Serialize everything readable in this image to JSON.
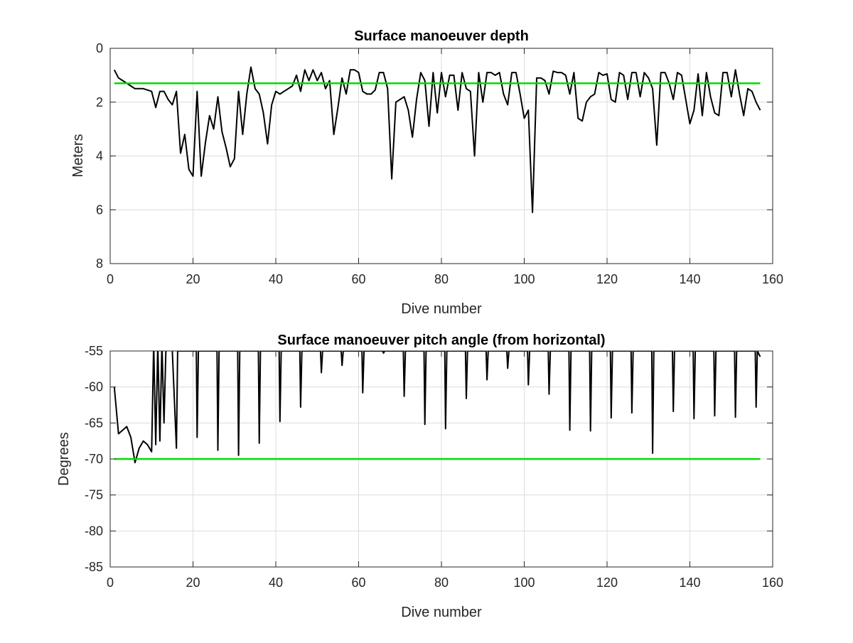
{
  "chart_data": [
    {
      "type": "line",
      "title": "Surface manoeuver depth",
      "xlabel": "Dive number",
      "ylabel": "Meters",
      "xlim": [
        0,
        160
      ],
      "ylim": [
        0,
        8
      ],
      "y_reversed": true,
      "grid": true,
      "xticks": [
        "0",
        "20",
        "40",
        "60",
        "80",
        "100",
        "120",
        "140",
        "160"
      ],
      "yticks": [
        "0",
        "2",
        "4",
        "6",
        "8"
      ],
      "reference_line": {
        "y": 1.3,
        "x_range": [
          1,
          157
        ],
        "color": "#00dd00"
      },
      "series": [
        {
          "color": "#000000",
          "points": [
            [
              1,
              0.8
            ],
            [
              2,
              1.1
            ],
            [
              3,
              1.2
            ],
            [
              4,
              1.3
            ],
            [
              5,
              1.4
            ],
            [
              6,
              1.5
            ],
            [
              7,
              1.5
            ],
            [
              8,
              1.5
            ],
            [
              9,
              1.55
            ],
            [
              10,
              1.6
            ],
            [
              11,
              2.2
            ],
            [
              12,
              1.6
            ],
            [
              13,
              1.6
            ],
            [
              14,
              1.9
            ],
            [
              15,
              2.1
            ],
            [
              16,
              1.6
            ],
            [
              17,
              3.9
            ],
            [
              18,
              3.2
            ],
            [
              19,
              4.5
            ],
            [
              20,
              4.75
            ],
            [
              21,
              1.6
            ],
            [
              22,
              4.75
            ],
            [
              23,
              3.5
            ],
            [
              24,
              2.5
            ],
            [
              25,
              3.0
            ],
            [
              26,
              1.8
            ],
            [
              27,
              3.1
            ],
            [
              28,
              3.7
            ],
            [
              29,
              4.4
            ],
            [
              30,
              4.1
            ],
            [
              31,
              1.6
            ],
            [
              32,
              3.2
            ],
            [
              33,
              1.7
            ],
            [
              34,
              0.7
            ],
            [
              35,
              1.5
            ],
            [
              36,
              1.7
            ],
            [
              37,
              2.4
            ],
            [
              38,
              3.55
            ],
            [
              39,
              2.1
            ],
            [
              40,
              1.6
            ],
            [
              41,
              1.7
            ],
            [
              42,
              1.6
            ],
            [
              43,
              1.5
            ],
            [
              44,
              1.4
            ],
            [
              45,
              1.0
            ],
            [
              46,
              1.6
            ],
            [
              47,
              0.8
            ],
            [
              48,
              1.2
            ],
            [
              49,
              0.8
            ],
            [
              50,
              1.2
            ],
            [
              51,
              0.9
            ],
            [
              52,
              1.5
            ],
            [
              53,
              1.2
            ],
            [
              54,
              3.2
            ],
            [
              55,
              2.2
            ],
            [
              56,
              1.1
            ],
            [
              57,
              1.7
            ],
            [
              58,
              0.8
            ],
            [
              59,
              0.8
            ],
            [
              60,
              0.9
            ],
            [
              61,
              1.6
            ],
            [
              62,
              1.7
            ],
            [
              63,
              1.7
            ],
            [
              64,
              1.55
            ],
            [
              65,
              0.9
            ],
            [
              66,
              0.9
            ],
            [
              67,
              1.5
            ],
            [
              68,
              4.85
            ],
            [
              69,
              2.0
            ],
            [
              70,
              1.9
            ],
            [
              71,
              1.8
            ],
            [
              72,
              2.3
            ],
            [
              73,
              3.3
            ],
            [
              74,
              1.9
            ],
            [
              75,
              0.9
            ],
            [
              76,
              1.2
            ],
            [
              77,
              2.9
            ],
            [
              78,
              0.9
            ],
            [
              79,
              2.4
            ],
            [
              80,
              0.9
            ],
            [
              81,
              1.8
            ],
            [
              82,
              1.0
            ],
            [
              83,
              1.0
            ],
            [
              84,
              2.3
            ],
            [
              85,
              0.9
            ],
            [
              86,
              1.5
            ],
            [
              87,
              1.6
            ],
            [
              88,
              4.0
            ],
            [
              89,
              0.9
            ],
            [
              90,
              2.0
            ],
            [
              91,
              0.9
            ],
            [
              92,
              0.9
            ],
            [
              93,
              1.0
            ],
            [
              94,
              0.9
            ],
            [
              95,
              1.7
            ],
            [
              96,
              2.1
            ],
            [
              97,
              0.9
            ],
            [
              98,
              0.9
            ],
            [
              99,
              1.7
            ],
            [
              100,
              2.6
            ],
            [
              101,
              2.3
            ],
            [
              102,
              6.1
            ],
            [
              103,
              1.1
            ],
            [
              104,
              1.1
            ],
            [
              105,
              1.2
            ],
            [
              106,
              1.7
            ],
            [
              107,
              0.85
            ],
            [
              108,
              0.9
            ],
            [
              109,
              0.9
            ],
            [
              110,
              1.0
            ],
            [
              111,
              1.7
            ],
            [
              112,
              0.9
            ],
            [
              113,
              2.6
            ],
            [
              114,
              2.7
            ],
            [
              115,
              2.0
            ],
            [
              116,
              1.8
            ],
            [
              117,
              1.7
            ],
            [
              118,
              0.9
            ],
            [
              119,
              1.0
            ],
            [
              120,
              0.95
            ],
            [
              121,
              1.9
            ],
            [
              122,
              2.0
            ],
            [
              123,
              0.9
            ],
            [
              124,
              1.0
            ],
            [
              125,
              1.9
            ],
            [
              126,
              0.9
            ],
            [
              127,
              0.9
            ],
            [
              128,
              1.8
            ],
            [
              129,
              0.9
            ],
            [
              130,
              1.1
            ],
            [
              131,
              1.5
            ],
            [
              132,
              3.6
            ],
            [
              133,
              0.9
            ],
            [
              134,
              0.9
            ],
            [
              135,
              1.3
            ],
            [
              136,
              1.9
            ],
            [
              137,
              0.9
            ],
            [
              138,
              1.0
            ],
            [
              139,
              1.9
            ],
            [
              140,
              2.8
            ],
            [
              141,
              2.3
            ],
            [
              142,
              0.95
            ],
            [
              143,
              2.5
            ],
            [
              144,
              0.9
            ],
            [
              145,
              1.8
            ],
            [
              146,
              2.4
            ],
            [
              147,
              2.5
            ],
            [
              148,
              0.9
            ],
            [
              149,
              0.9
            ],
            [
              150,
              1.8
            ],
            [
              151,
              0.8
            ],
            [
              152,
              1.7
            ],
            [
              153,
              2.5
            ],
            [
              154,
              1.5
            ],
            [
              155,
              1.6
            ],
            [
              156,
              2.0
            ],
            [
              157,
              2.3
            ]
          ]
        }
      ]
    },
    {
      "type": "line",
      "title": "Surface manoeuver pitch angle (from horizontal)",
      "xlabel": "Dive number",
      "ylabel": "Degrees",
      "xlim": [
        0,
        160
      ],
      "ylim": [
        -85,
        -55
      ],
      "grid": true,
      "xticks": [
        "0",
        "20",
        "40",
        "60",
        "80",
        "100",
        "120",
        "140",
        "160"
      ],
      "yticks": [
        "-55",
        "-60",
        "-65",
        "-70",
        "-75",
        "-80",
        "-85"
      ],
      "reference_line": {
        "y": -70,
        "x_range": [
          1,
          157
        ],
        "color": "#00dd00"
      },
      "series": [
        {
          "color": "#000000",
          "points": [
            [
              1,
              -60
            ],
            [
              2,
              -66.5
            ],
            [
              3,
              -66
            ],
            [
              4,
              -65.5
            ],
            [
              5,
              -67
            ],
            [
              6,
              -70.5
            ],
            [
              7,
              -68.5
            ],
            [
              8,
              -67.5
            ],
            [
              9,
              -68
            ],
            [
              10,
              -69
            ],
            [
              10.5,
              -54
            ],
            [
              11,
              -68
            ],
            [
              11.5,
              -54
            ],
            [
              12,
              -67.5
            ],
            [
              12.5,
              -54
            ],
            [
              13,
              -65
            ],
            [
              13.5,
              -54
            ],
            [
              15,
              -55
            ],
            [
              16,
              -68.5
            ],
            [
              16.3,
              -55
            ],
            [
              20.8,
              -55
            ],
            [
              21,
              -67
            ],
            [
              21.3,
              -55
            ],
            [
              25.8,
              -55
            ],
            [
              26,
              -68.8
            ],
            [
              26.3,
              -55
            ],
            [
              30.8,
              -55
            ],
            [
              31,
              -69.5
            ],
            [
              31.3,
              -55
            ],
            [
              35.8,
              -55
            ],
            [
              36,
              -67.8
            ],
            [
              36.3,
              -55
            ],
            [
              40.8,
              -55
            ],
            [
              41,
              -64.8
            ],
            [
              41.3,
              -55
            ],
            [
              45.8,
              -55
            ],
            [
              46,
              -62.8
            ],
            [
              46.3,
              -55
            ],
            [
              50.8,
              -55
            ],
            [
              51,
              -58
            ],
            [
              51.3,
              -55
            ],
            [
              55.8,
              -55
            ],
            [
              56,
              -57
            ],
            [
              56.3,
              -55
            ],
            [
              60.8,
              -55
            ],
            [
              61,
              -60.8
            ],
            [
              61.3,
              -55
            ],
            [
              65.8,
              -55
            ],
            [
              66,
              -55.3
            ],
            [
              66.3,
              -55
            ],
            [
              70.8,
              -55
            ],
            [
              71,
              -61.3
            ],
            [
              71.3,
              -55
            ],
            [
              75.8,
              -55
            ],
            [
              76,
              -65.2
            ],
            [
              76.3,
              -55
            ],
            [
              80.8,
              -55
            ],
            [
              81,
              -65.8
            ],
            [
              81.3,
              -55
            ],
            [
              85.8,
              -55
            ],
            [
              86,
              -61.6
            ],
            [
              86.3,
              -55
            ],
            [
              90.8,
              -55
            ],
            [
              91,
              -59
            ],
            [
              91.3,
              -55
            ],
            [
              95.8,
              -55
            ],
            [
              96,
              -57.4
            ],
            [
              96.3,
              -55
            ],
            [
              100.8,
              -55
            ],
            [
              101,
              -59.7
            ],
            [
              101.3,
              -55
            ],
            [
              105.8,
              -55
            ],
            [
              106,
              -61
            ],
            [
              106.3,
              -55
            ],
            [
              110.8,
              -55
            ],
            [
              111,
              -66
            ],
            [
              111.3,
              -55
            ],
            [
              115.8,
              -55
            ],
            [
              116,
              -66.1
            ],
            [
              116.3,
              -55
            ],
            [
              120.8,
              -55
            ],
            [
              121,
              -64.3
            ],
            [
              121.3,
              -55
            ],
            [
              125.8,
              -55
            ],
            [
              126,
              -63.6
            ],
            [
              126.3,
              -55
            ],
            [
              130.8,
              -55
            ],
            [
              131,
              -69.2
            ],
            [
              131.3,
              -55
            ],
            [
              135.8,
              -55
            ],
            [
              136,
              -63.4
            ],
            [
              136.3,
              -55
            ],
            [
              140.8,
              -55
            ],
            [
              141,
              -64.4
            ],
            [
              141.3,
              -55
            ],
            [
              145.8,
              -55
            ],
            [
              146,
              -64
            ],
            [
              146.3,
              -55
            ],
            [
              150.8,
              -55
            ],
            [
              151,
              -64.2
            ],
            [
              151.3,
              -55
            ],
            [
              155.8,
              -55
            ],
            [
              156,
              -62.8
            ],
            [
              156.3,
              -55
            ],
            [
              157,
              -55.8
            ]
          ]
        }
      ]
    }
  ]
}
